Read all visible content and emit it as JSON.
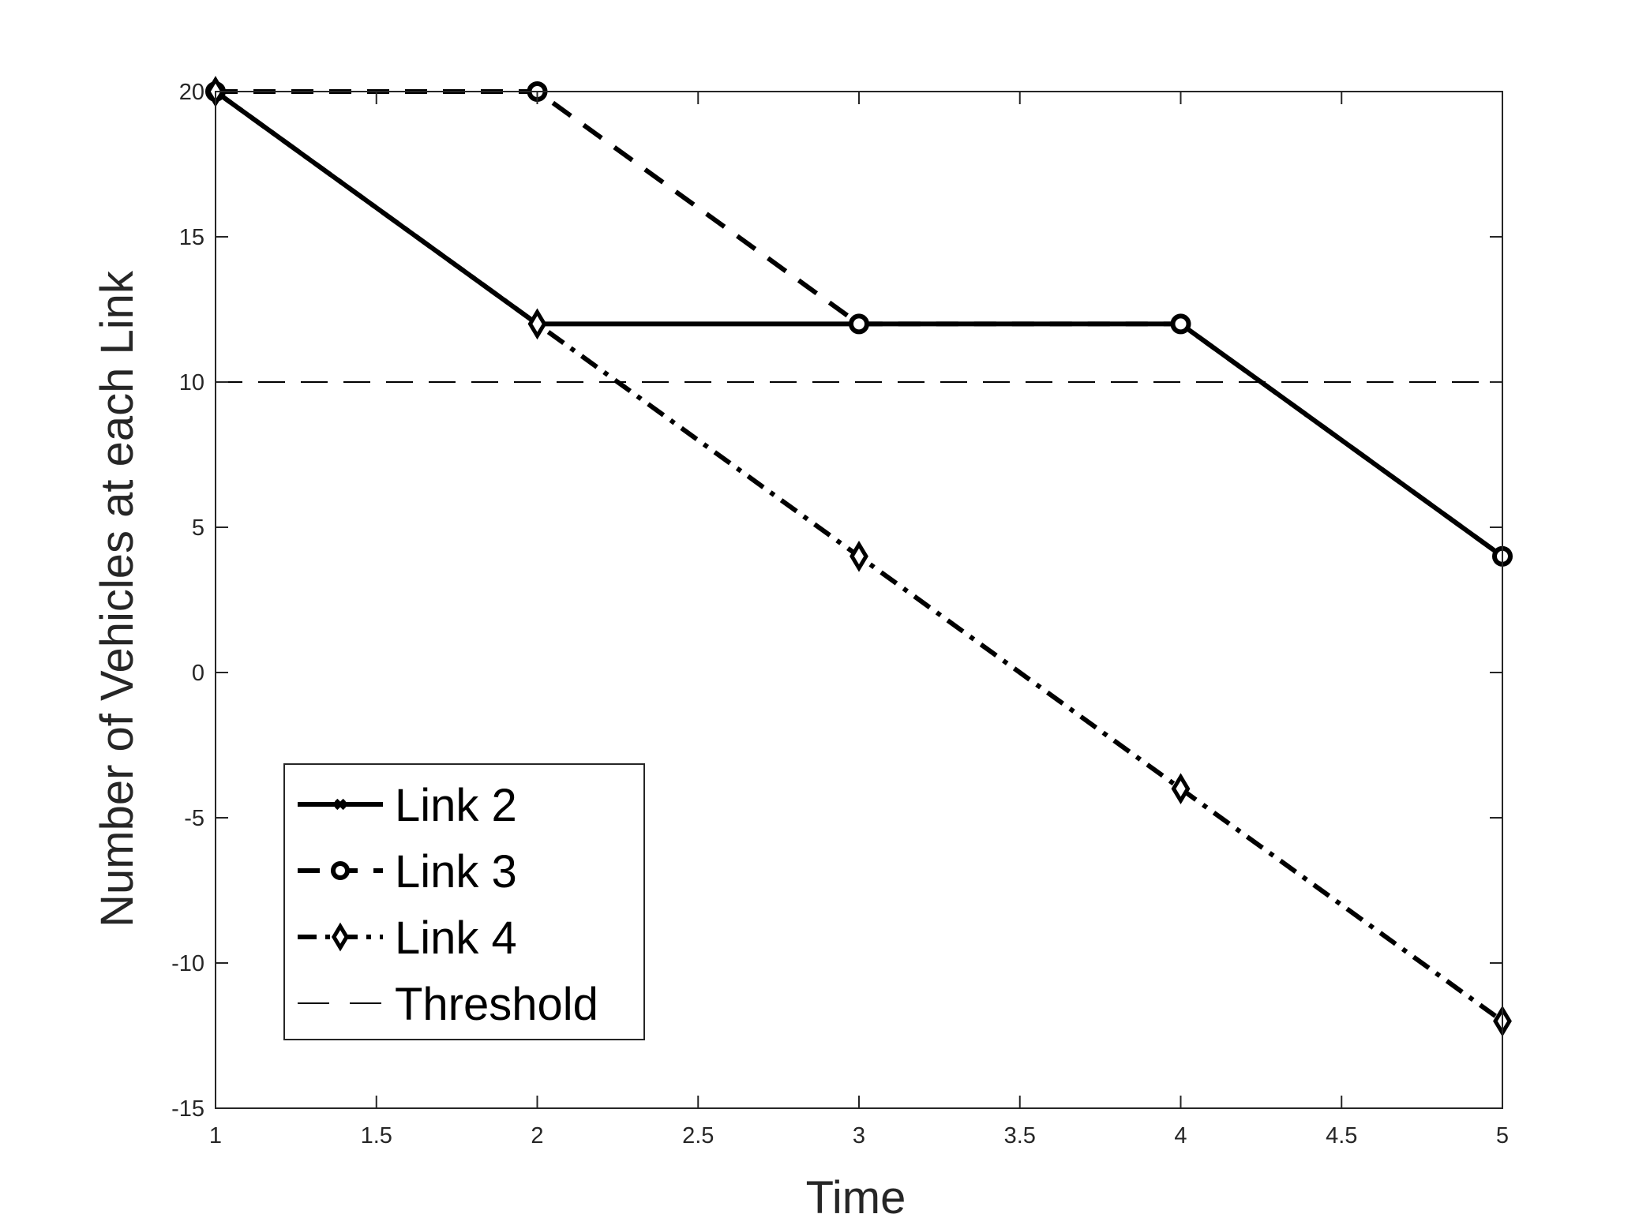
{
  "chart_data": {
    "type": "line",
    "xlabel": "Time",
    "ylabel": "Number of Vehicles at each Link",
    "xlim": [
      1,
      5
    ],
    "ylim": [
      -15,
      20
    ],
    "xticks": [
      1,
      1.5,
      2,
      2.5,
      3,
      3.5,
      4,
      4.5,
      5
    ],
    "xtick_labels": [
      "1",
      "1.5",
      "2",
      "2.5",
      "3",
      "3.5",
      "4",
      "4.5",
      "5"
    ],
    "yticks": [
      -15,
      -10,
      -5,
      0,
      5,
      10,
      15,
      20
    ],
    "ytick_labels": [
      "-15",
      "-10",
      "-5",
      "0",
      "5",
      "10",
      "15",
      "20"
    ],
    "grid": false,
    "legend_position": "bottom-left",
    "series": [
      {
        "name": "Link 2",
        "x": [
          1,
          2,
          3,
          4,
          5
        ],
        "y": [
          20,
          12,
          12,
          12,
          4
        ],
        "line_style": "solid",
        "marker": "x",
        "color": "#000000"
      },
      {
        "name": "Link 3",
        "x": [
          1,
          2,
          3,
          4,
          5
        ],
        "y": [
          20,
          20,
          12,
          12,
          4
        ],
        "line_style": "dashed",
        "marker": "circle",
        "color": "#000000"
      },
      {
        "name": "Link 4",
        "x": [
          1,
          2,
          3,
          4,
          5
        ],
        "y": [
          20,
          12,
          4,
          -4,
          -12
        ],
        "line_style": "dash-dot",
        "marker": "diamond",
        "color": "#000000"
      },
      {
        "name": "Threshold",
        "x": [
          1,
          5
        ],
        "y": [
          10,
          10
        ],
        "line_style": "dashed-thin",
        "marker": "none",
        "color": "#000000"
      }
    ]
  }
}
